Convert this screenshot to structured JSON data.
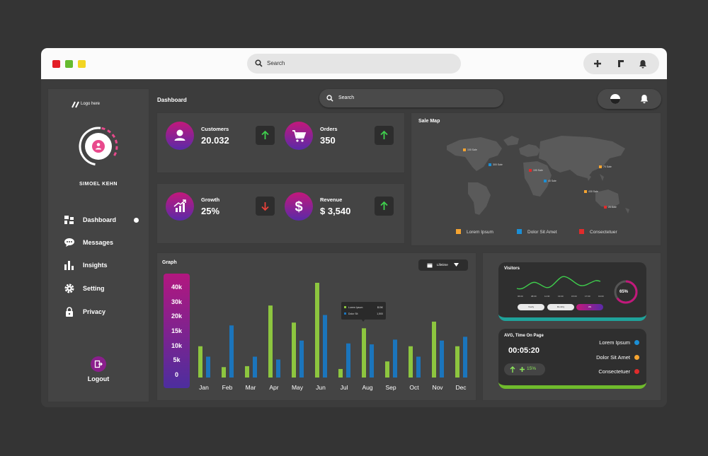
{
  "browser": {
    "search_placeholder": "Search",
    "window_dots": [
      "#e31e26",
      "#66bb2f",
      "#f2d522"
    ]
  },
  "sidebar": {
    "logo_text": "Logo here",
    "user_name": "SIMOEL KEHN",
    "items": [
      {
        "label": "Dashboard",
        "icon": "dashboard-icon",
        "active": true
      },
      {
        "label": "Messages",
        "icon": "chat-icon"
      },
      {
        "label": "Insights",
        "icon": "bar-chart-icon"
      },
      {
        "label": "Setting",
        "icon": "gear-icon"
      },
      {
        "label": "Privacy",
        "icon": "lock-icon"
      }
    ],
    "logout_label": "Logout"
  },
  "header": {
    "title": "Dashboard",
    "search_placeholder": "Search"
  },
  "stats": {
    "customers": {
      "title": "Customers",
      "value": "20.032",
      "trend": "up",
      "icon": "user-icon"
    },
    "orders": {
      "title": "Orders",
      "value": "350",
      "trend": "up",
      "icon": "cart-icon"
    },
    "growth": {
      "title": "Growth",
      "value": "25%",
      "trend": "down",
      "icon": "growth-chart-icon"
    },
    "revenue": {
      "title": "Revenue",
      "value": "$ 3,540",
      "trend": "up",
      "icon": "dollar-icon"
    }
  },
  "sale_map": {
    "title": "Sale Map",
    "pins": [
      {
        "label": "100 Sale",
        "color": "#f5a431"
      },
      {
        "label": "300 Sale",
        "color": "#1b8fd6"
      },
      {
        "label": "190 Sale",
        "color": "#e02b2b"
      },
      {
        "label": "40 Sale",
        "color": "#1b8fd6"
      },
      {
        "label": "70 Sale",
        "color": "#f5a431"
      },
      {
        "label": "430 Sale",
        "color": "#f5a431"
      },
      {
        "label": "20 Sale",
        "color": "#e02b2b"
      }
    ],
    "legend": [
      {
        "label": "Lorem Ipsum",
        "color": "#f5a431"
      },
      {
        "label": "Dolor Sit Amet",
        "color": "#1b8fd6"
      },
      {
        "label": "Consectetuer",
        "color": "#e02b2b"
      }
    ]
  },
  "graph": {
    "title": "Graph",
    "filter_label": "Lifetime",
    "tooltip": {
      "rows": [
        {
          "label": "Lorem Ipsum",
          "value": "$15K",
          "color": "#8dc63f"
        },
        {
          "label": "Dolor Sit",
          "value": "1,500",
          "color": "#1b75bc"
        }
      ]
    }
  },
  "chart_data": {
    "type": "bar",
    "categories": [
      "Jan",
      "Feb",
      "Mar",
      "Apr",
      "May",
      "Jun",
      "Jul",
      "Aug",
      "Sep",
      "Oct",
      "Nov",
      "Dec"
    ],
    "y_ticks": [
      "40k",
      "30k",
      "20k",
      "15k",
      "10k",
      "5k",
      "0"
    ],
    "series": [
      {
        "color": "#8dc63f",
        "values": [
          0.33,
          0.11,
          0.12,
          0.76,
          0.58,
          1.0,
          0.09,
          0.52,
          0.17,
          0.33,
          0.59,
          0.33
        ]
      },
      {
        "color": "#1b75bc",
        "values": [
          0.22,
          0.55,
          0.22,
          0.19,
          0.39,
          0.66,
          0.36,
          0.35,
          0.4,
          0.22,
          0.39,
          0.43
        ]
      }
    ],
    "ylim": [
      0,
      1
    ]
  },
  "visitors": {
    "title": "Visitors",
    "ticks": [
      "06:00",
      "08:00",
      "11:00",
      "13:00",
      "15:00",
      "17:00",
      "19:00"
    ],
    "percent": "65%",
    "periods": [
      "Yearly",
      "Monthly",
      "Wk"
    ],
    "percent_value": 0.65
  },
  "avg_time": {
    "title": "AVG, Time On Page",
    "time": "00:05:20",
    "change": "15%",
    "legend": [
      {
        "label": "Lorem Ipsum",
        "color": "#1b8fd6"
      },
      {
        "label": "Dolor Sit Amet",
        "color": "#f5a431"
      },
      {
        "label": "Consectetuer",
        "color": "#e02b2b"
      }
    ]
  }
}
